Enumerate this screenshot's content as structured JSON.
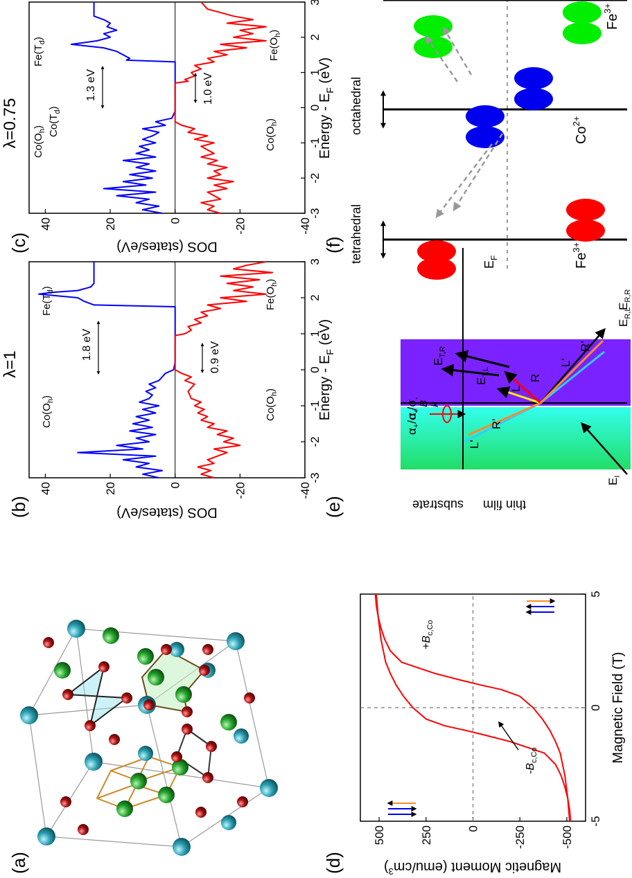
{
  "panel_labels": [
    "(a)",
    "(b)",
    "(c)",
    "(d)",
    "(e)",
    "(f)"
  ],
  "colors": {
    "spin_up": "#0000ff",
    "spin_down": "#ff0000",
    "octahedral": "#00ee00",
    "cobalt": "#0000ee",
    "tetrahedral": "#ff0000",
    "arrow_dashed": "#999999",
    "orange": "#ff8a2a",
    "cyan": "#33ccff",
    "yellow": "#ffee00",
    "thin_film": "#7a22ff",
    "substrate_left": "#22dd66",
    "substrate_right": "#33ffee",
    "atom_teal": "#2a9dae",
    "atom_green": "#22a02a",
    "atom_red": "#aa1010"
  },
  "panel_a": {
    "atom_types": [
      "teal",
      "green",
      "dark-red"
    ],
    "polyhedra": [
      "tetrahedron",
      "octahedron",
      "cube"
    ]
  },
  "panel_b": {
    "title": "λ=1",
    "xlabel": "Energy - E",
    "xlabel_sub": "F",
    "xlabel_unit": "(eV)",
    "ylabel": "DOS (states/eV)",
    "gap_labels": [
      "1.8 eV",
      "0.9 eV"
    ],
    "annotations": [
      {
        "text": "Co(O",
        "sub": "h",
        "close": ")"
      },
      {
        "text": "Fe(T",
        "sub": "d",
        "close": ")"
      },
      {
        "text": "Co(O",
        "sub": "h",
        "close": ")"
      },
      {
        "text": "Fe(O",
        "sub": "h",
        "close": ")"
      }
    ]
  },
  "panel_c": {
    "title": "λ=0.75",
    "xlabel": "Energy - E",
    "xlabel_sub": "F",
    "xlabel_unit": "(eV)",
    "ylabel": "DOS (states/eV)",
    "gap_labels": [
      "1.3 eV",
      "1.0 eV"
    ],
    "annotations": [
      {
        "text": "Co(O",
        "sub": "h",
        "close": ")"
      },
      {
        "text": "Co(T",
        "sub": "d",
        "close": ")"
      },
      {
        "text": "Fe(T",
        "sub": "d",
        "close": ")"
      },
      {
        "text": "Co(O",
        "sub": "h",
        "close": ")"
      },
      {
        "text": "Fe(O",
        "sub": "h",
        "close": ")"
      }
    ]
  },
  "panel_d": {
    "xlabel": "Magnetic Field (T)",
    "ylabel": "Magnetic Moment (emu/cm",
    "ylabel_sup": "3",
    "ylabel_close": ")",
    "annotations": [
      "-B",
      "+B"
    ],
    "annotation_sub": "c,Co"
  },
  "panel_e": {
    "layer_labels": [
      "thin film",
      "substrate"
    ],
    "beam_labels": [
      "L'",
      "R'",
      "L",
      "R",
      "L'",
      "R'"
    ],
    "field_labels": [
      "E",
      "E",
      "E",
      "E",
      "E"
    ],
    "field_subs": [
      "I",
      "R,L",
      "R,R",
      "T,L",
      "T,R"
    ],
    "legend": [
      "α",
      "σ",
      "α",
      "σ"
    ],
    "legend_subs": [
      "+",
      "+",
      "-",
      "-"
    ],
    "vector_labels": [
      "k",
      "B"
    ]
  },
  "panel_f": {
    "site_labels": [
      "tetrahedral",
      "octahedral"
    ],
    "fermi_label": "E",
    "fermi_sub": "F",
    "ion_labels": [
      "Fe",
      "Co",
      "Fe"
    ],
    "ion_sups": [
      "3+",
      "2+",
      "3+"
    ]
  },
  "chart_data": [
    {
      "panel": "(b)",
      "type": "line",
      "title": "λ=1",
      "xlabel": "Energy - E_F (eV)",
      "ylabel": "DOS (states/eV)",
      "xlim": [
        -3,
        3
      ],
      "ylim": [
        -40,
        45
      ],
      "xticks": [
        -3,
        -2,
        -1,
        0,
        1,
        2,
        3
      ],
      "yticks": [
        40,
        20,
        0,
        -20,
        -40
      ],
      "zero_line": true,
      "series": [
        {
          "color": "#0000ff",
          "x": [
            -3,
            -2.9,
            -2.8,
            -2.7,
            -2.6,
            -2.5,
            -2.4,
            -2.3,
            -2.2,
            -2.1,
            -2.0,
            -1.9,
            -1.8,
            -1.7,
            -1.6,
            -1.5,
            -1.4,
            -1.3,
            -1.2,
            -1.1,
            -1.0,
            -0.9,
            -0.8,
            -0.7,
            -0.6,
            -0.5,
            -0.4,
            -0.3,
            -0.2,
            -0.1,
            0.0,
            0.2,
            0.5,
            1.0,
            1.5,
            1.75,
            1.8,
            1.9,
            2.0,
            2.05,
            2.1,
            2.15,
            2.2,
            2.3,
            2.4,
            2.5,
            2.6,
            2.8,
            3.0
          ],
          "y": [
            5,
            10,
            4,
            12,
            8,
            16,
            6,
            30,
            10,
            18,
            8,
            12,
            6,
            14,
            7,
            13,
            8,
            12,
            6,
            10,
            5,
            11,
            8,
            7,
            9,
            6,
            8,
            5,
            4,
            3,
            0.5,
            0,
            0,
            0,
            0,
            0,
            25,
            28,
            30,
            36,
            42,
            38,
            30,
            26,
            25,
            25,
            25,
            25,
            25
          ]
        },
        {
          "color": "#ff0000",
          "x": [
            -3,
            -2.9,
            -2.8,
            -2.7,
            -2.6,
            -2.5,
            -2.4,
            -2.3,
            -2.2,
            -2.1,
            -2.0,
            -1.9,
            -1.8,
            -1.7,
            -1.6,
            -1.5,
            -1.4,
            -1.3,
            -1.2,
            -1.1,
            -1.0,
            -0.9,
            -0.8,
            -0.6,
            -0.4,
            -0.3,
            -0.2,
            -0.1,
            0.0,
            0.4,
            0.8,
            0.95,
            1.0,
            1.1,
            1.2,
            1.3,
            1.4,
            1.5,
            1.6,
            1.7,
            1.8,
            1.9,
            2.0,
            2.1,
            2.2,
            2.3,
            2.4,
            2.5,
            2.6,
            2.7,
            2.8,
            2.9,
            3.0
          ],
          "y": [
            -12,
            -8,
            -11,
            -7,
            -12,
            -10,
            -13,
            -16,
            -12,
            -20,
            -15,
            -18,
            -13,
            -16,
            -10,
            -12,
            -8,
            -10,
            -7,
            -9,
            -6,
            -8,
            -5,
            -4,
            -6,
            -3,
            -5,
            -2,
            0,
            0,
            0,
            0,
            -3,
            -5,
            -4,
            -8,
            -6,
            -10,
            -8,
            -14,
            -10,
            -22,
            -14,
            -28,
            -18,
            -24,
            -16,
            -26,
            -14,
            -30,
            -18,
            -22,
            -28
          ]
        }
      ]
    },
    {
      "panel": "(c)",
      "type": "line",
      "title": "λ=0.75",
      "xlabel": "Energy - E_F (eV)",
      "ylabel": "DOS (states/eV)",
      "xlim": [
        -3,
        3
      ],
      "ylim": [
        -40,
        45
      ],
      "xticks": [
        -3,
        -2,
        -1,
        0,
        1,
        2,
        3
      ],
      "yticks": [
        40,
        20,
        0,
        -20,
        -40
      ],
      "zero_line": true,
      "series": [
        {
          "color": "#0000ff",
          "x": [
            -3,
            -2.9,
            -2.8,
            -2.7,
            -2.6,
            -2.5,
            -2.4,
            -2.3,
            -2.2,
            -2.1,
            -2.0,
            -1.9,
            -1.8,
            -1.7,
            -1.6,
            -1.5,
            -1.4,
            -1.3,
            -1.2,
            -1.1,
            -1.0,
            -0.9,
            -0.8,
            -0.7,
            -0.6,
            -0.5,
            -0.4,
            -0.3,
            -0.2,
            -0.1,
            0.0,
            0.3,
            0.6,
            1.0,
            1.3,
            1.35,
            1.4,
            1.5,
            1.6,
            1.7,
            1.8,
            1.9,
            2.0,
            2.1,
            2.2,
            2.3,
            2.4,
            2.5,
            2.6,
            2.8,
            3.0
          ],
          "y": [
            4,
            10,
            5,
            12,
            8,
            18,
            6,
            22,
            9,
            16,
            7,
            14,
            6,
            12,
            8,
            16,
            6,
            12,
            8,
            11,
            6,
            10,
            7,
            5,
            10,
            3,
            6,
            1,
            0.5,
            0,
            0,
            0,
            0,
            0,
            0,
            15,
            14,
            16,
            18,
            22,
            32,
            24,
            20,
            22,
            18,
            21,
            20,
            22,
            25,
            25,
            25
          ]
        },
        {
          "color": "#ff0000",
          "x": [
            -3,
            -2.9,
            -2.8,
            -2.7,
            -2.6,
            -2.5,
            -2.4,
            -2.3,
            -2.2,
            -2.1,
            -2.0,
            -1.9,
            -1.8,
            -1.7,
            -1.6,
            -1.5,
            -1.4,
            -1.3,
            -1.2,
            -1.1,
            -1.0,
            -0.9,
            -0.8,
            -0.7,
            -0.6,
            -0.5,
            -0.45,
            -0.4,
            -0.2,
            0.0,
            0.4,
            0.7,
            0.75,
            0.8,
            0.9,
            1.0,
            1.1,
            1.2,
            1.3,
            1.4,
            1.5,
            1.6,
            1.7,
            1.8,
            1.9,
            2.0,
            2.1,
            2.2,
            2.3,
            2.4,
            2.5,
            2.6,
            2.7,
            2.8,
            3.0
          ],
          "y": [
            -14,
            -10,
            -12,
            -8,
            -14,
            -12,
            -10,
            -16,
            -12,
            -18,
            -10,
            -14,
            -12,
            -16,
            -10,
            -13,
            -8,
            -12,
            -10,
            -8,
            -12,
            -6,
            -10,
            -4,
            -6,
            -2,
            -1,
            0,
            0,
            0,
            0,
            0,
            -4,
            -3,
            -6,
            -5,
            -8,
            -6,
            -12,
            -10,
            -16,
            -12,
            -22,
            -14,
            -28,
            -18,
            -24,
            -20,
            -28,
            -16,
            -24,
            -18,
            -14,
            -10,
            -8
          ]
        }
      ]
    },
    {
      "panel": "(d)",
      "type": "line",
      "xlabel": "Magnetic Field (T)",
      "ylabel": "Magnetic Moment (emu/cm^3)",
      "xlim": [
        -5,
        5
      ],
      "ylim": [
        -600,
        600
      ],
      "xticks": [
        -5,
        0,
        5
      ],
      "yticks": [
        500,
        250,
        0,
        -250,
        -500
      ],
      "dashed_reference_lines": {
        "x": 0,
        "y": 0
      },
      "series": [
        {
          "color": "#ff0000",
          "x": [
            -5,
            -4.5,
            -4,
            -3.5,
            -3,
            -2.5,
            -2,
            -1.5,
            -1.2,
            -1.0,
            -0.8,
            -0.5,
            0,
            0.5,
            1,
            1.5,
            2,
            3,
            4,
            5
          ],
          "y": [
            -520,
            -515,
            -505,
            -490,
            -470,
            -440,
            -380,
            -200,
            -60,
            40,
            150,
            250,
            320,
            370,
            410,
            440,
            465,
            490,
            505,
            515
          ]
        },
        {
          "color": "#ff0000",
          "x": [
            5,
            4.5,
            4,
            3.5,
            3,
            2.5,
            2,
            1.5,
            1.2,
            1.0,
            0.8,
            0.5,
            0,
            -0.5,
            -1,
            -1.5,
            -2,
            -3,
            -4,
            -5
          ],
          "y": [
            520,
            515,
            505,
            490,
            470,
            440,
            380,
            200,
            60,
            -40,
            -150,
            -250,
            -320,
            -370,
            -410,
            -440,
            -465,
            -490,
            -505,
            -515
          ]
        }
      ]
    }
  ]
}
